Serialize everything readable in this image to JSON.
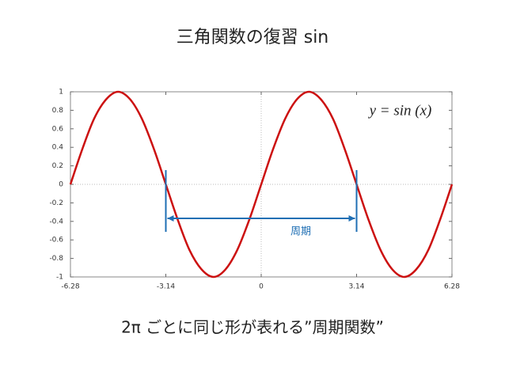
{
  "chart_data": {
    "type": "line",
    "title": "三角関数の復習 sin",
    "caption": "2π ごとに同じ形が表れる”周期関数”",
    "formula": "y = sin (x)",
    "period_label": "周期",
    "x": [
      -6.28,
      -5.89,
      -5.5,
      -5.1,
      -4.71,
      -4.32,
      -3.93,
      -3.53,
      -3.14,
      -2.75,
      -2.36,
      -1.96,
      -1.57,
      -1.18,
      -0.79,
      -0.39,
      0,
      0.39,
      0.79,
      1.18,
      1.57,
      1.96,
      2.36,
      2.75,
      3.14,
      3.53,
      3.93,
      4.32,
      4.71,
      5.1,
      5.5,
      5.89,
      6.28
    ],
    "series": [
      {
        "color": "#cc1111",
        "values": [
          0,
          0.38,
          0.71,
          0.92,
          1,
          0.92,
          0.71,
          0.38,
          0,
          -0.38,
          -0.71,
          -0.92,
          -1,
          -0.92,
          -0.71,
          -0.38,
          0,
          0.38,
          0.71,
          0.92,
          1,
          0.92,
          0.71,
          0.38,
          0,
          -0.38,
          -0.71,
          -0.92,
          -1,
          -0.92,
          -0.71,
          -0.38,
          0
        ]
      }
    ],
    "xlim": [
      -6.28,
      6.28
    ],
    "xticks": [
      -6.28,
      -3.14,
      0,
      3.14,
      6.28
    ],
    "ylim": [
      -1,
      1
    ],
    "yticks": [
      -1,
      -0.8,
      -0.6,
      -0.4,
      -0.2,
      0,
      0.2,
      0.4,
      0.6,
      0.8,
      1
    ],
    "annotation_color": "#1f6fb4"
  }
}
